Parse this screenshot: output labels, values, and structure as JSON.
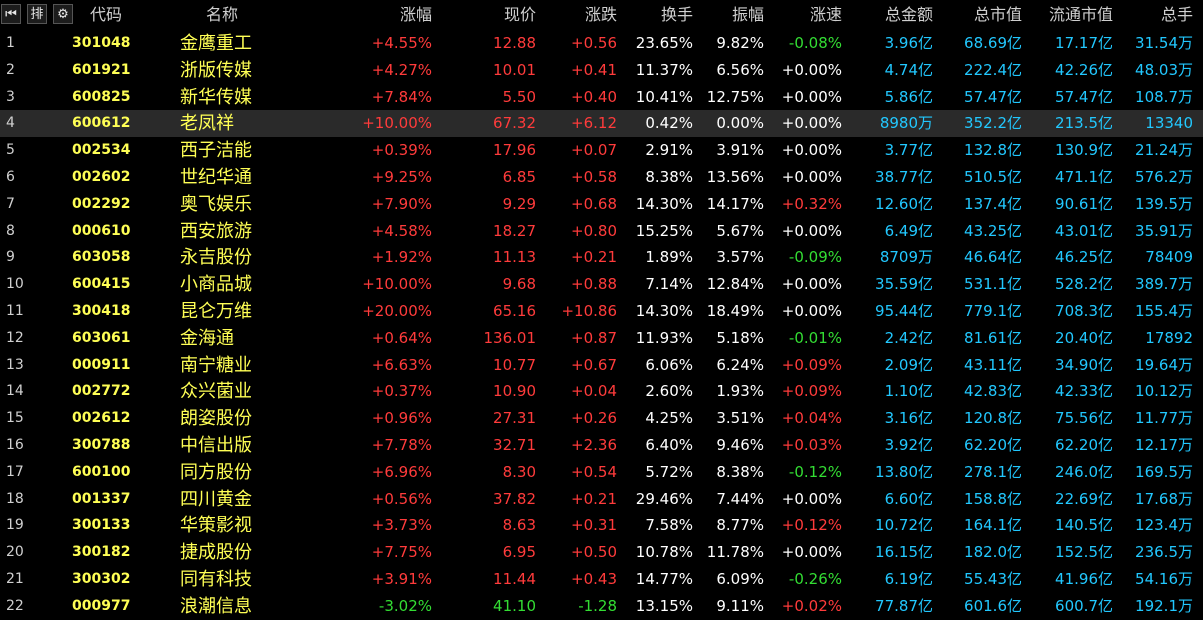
{
  "toolbar": {
    "first_icon": "first-page-icon",
    "sort_icon": "sort-icon",
    "settings_icon": "gear-icon",
    "first_glyph": "⏮",
    "sort_glyph": "排",
    "settings_glyph": "⚙"
  },
  "columns": {
    "code": "代码",
    "name": "名称",
    "pct": "涨幅",
    "price": "现价",
    "chg": "涨跌",
    "turnover": "换手",
    "amplitude": "振幅",
    "speed": "涨速",
    "amount": "总金额",
    "mcap": "总市值",
    "fmcap": "流通市值",
    "total_hand": "总手"
  },
  "rows": [
    {
      "seq": "1",
      "code": "301048",
      "name": "金鹰重工",
      "pct": "+4.55%",
      "price": "12.88",
      "chg": "+0.56",
      "turnover": "23.65%",
      "amplitude": "9.82%",
      "speed": "-0.08%",
      "amount": "3.96亿",
      "mcap": "68.69亿",
      "fmcap": "17.17亿",
      "total_hand": "31.54万"
    },
    {
      "seq": "2",
      "code": "601921",
      "name": "浙版传媒",
      "pct": "+4.27%",
      "price": "10.01",
      "chg": "+0.41",
      "turnover": "11.37%",
      "amplitude": "6.56%",
      "speed": "+0.00%",
      "amount": "4.74亿",
      "mcap": "222.4亿",
      "fmcap": "42.26亿",
      "total_hand": "48.03万"
    },
    {
      "seq": "3",
      "code": "600825",
      "name": "新华传媒",
      "pct": "+7.84%",
      "price": "5.50",
      "chg": "+0.40",
      "turnover": "10.41%",
      "amplitude": "12.75%",
      "speed": "+0.00%",
      "amount": "5.86亿",
      "mcap": "57.47亿",
      "fmcap": "57.47亿",
      "total_hand": "108.7万"
    },
    {
      "seq": "4",
      "code": "600612",
      "name": "老凤祥",
      "pct": "+10.00%",
      "price": "67.32",
      "chg": "+6.12",
      "turnover": "0.42%",
      "amplitude": "0.00%",
      "speed": "+0.00%",
      "amount": "8980万",
      "mcap": "352.2亿",
      "fmcap": "213.5亿",
      "total_hand": "13340"
    },
    {
      "seq": "5",
      "code": "002534",
      "name": "西子洁能",
      "pct": "+0.39%",
      "price": "17.96",
      "chg": "+0.07",
      "turnover": "2.91%",
      "amplitude": "3.91%",
      "speed": "+0.00%",
      "amount": "3.77亿",
      "mcap": "132.8亿",
      "fmcap": "130.9亿",
      "total_hand": "21.24万"
    },
    {
      "seq": "6",
      "code": "002602",
      "name": "世纪华通",
      "pct": "+9.25%",
      "price": "6.85",
      "chg": "+0.58",
      "turnover": "8.38%",
      "amplitude": "13.56%",
      "speed": "+0.00%",
      "amount": "38.77亿",
      "mcap": "510.5亿",
      "fmcap": "471.1亿",
      "total_hand": "576.2万"
    },
    {
      "seq": "7",
      "code": "002292",
      "name": "奥飞娱乐",
      "pct": "+7.90%",
      "price": "9.29",
      "chg": "+0.68",
      "turnover": "14.30%",
      "amplitude": "14.17%",
      "speed": "+0.32%",
      "amount": "12.60亿",
      "mcap": "137.4亿",
      "fmcap": "90.61亿",
      "total_hand": "139.5万"
    },
    {
      "seq": "8",
      "code": "000610",
      "name": "西安旅游",
      "pct": "+4.58%",
      "price": "18.27",
      "chg": "+0.80",
      "turnover": "15.25%",
      "amplitude": "5.67%",
      "speed": "+0.00%",
      "amount": "6.49亿",
      "mcap": "43.25亿",
      "fmcap": "43.01亿",
      "total_hand": "35.91万"
    },
    {
      "seq": "9",
      "code": "603058",
      "name": "永吉股份",
      "pct": "+1.92%",
      "price": "11.13",
      "chg": "+0.21",
      "turnover": "1.89%",
      "amplitude": "3.57%",
      "speed": "-0.09%",
      "amount": "8709万",
      "mcap": "46.64亿",
      "fmcap": "46.25亿",
      "total_hand": "78409"
    },
    {
      "seq": "10",
      "code": "600415",
      "name": "小商品城",
      "pct": "+10.00%",
      "price": "9.68",
      "chg": "+0.88",
      "turnover": "7.14%",
      "amplitude": "12.84%",
      "speed": "+0.00%",
      "amount": "35.59亿",
      "mcap": "531.1亿",
      "fmcap": "528.2亿",
      "total_hand": "389.7万"
    },
    {
      "seq": "11",
      "code": "300418",
      "name": "昆仑万维",
      "pct": "+20.00%",
      "price": "65.16",
      "chg": "+10.86",
      "turnover": "14.30%",
      "amplitude": "18.49%",
      "speed": "+0.00%",
      "amount": "95.44亿",
      "mcap": "779.1亿",
      "fmcap": "708.3亿",
      "total_hand": "155.4万"
    },
    {
      "seq": "12",
      "code": "603061",
      "name": "金海通",
      "pct": "+0.64%",
      "price": "136.01",
      "chg": "+0.87",
      "turnover": "11.93%",
      "amplitude": "5.18%",
      "speed": "-0.01%",
      "amount": "2.42亿",
      "mcap": "81.61亿",
      "fmcap": "20.40亿",
      "total_hand": "17892"
    },
    {
      "seq": "13",
      "code": "000911",
      "name": "南宁糖业",
      "pct": "+6.63%",
      "price": "10.77",
      "chg": "+0.67",
      "turnover": "6.06%",
      "amplitude": "6.24%",
      "speed": "+0.09%",
      "amount": "2.09亿",
      "mcap": "43.11亿",
      "fmcap": "34.90亿",
      "total_hand": "19.64万"
    },
    {
      "seq": "14",
      "code": "002772",
      "name": "众兴菌业",
      "pct": "+0.37%",
      "price": "10.90",
      "chg": "+0.04",
      "turnover": "2.60%",
      "amplitude": "1.93%",
      "speed": "+0.09%",
      "amount": "1.10亿",
      "mcap": "42.83亿",
      "fmcap": "42.33亿",
      "total_hand": "10.12万"
    },
    {
      "seq": "15",
      "code": "002612",
      "name": "朗姿股份",
      "pct": "+0.96%",
      "price": "27.31",
      "chg": "+0.26",
      "turnover": "4.25%",
      "amplitude": "3.51%",
      "speed": "+0.04%",
      "amount": "3.16亿",
      "mcap": "120.8亿",
      "fmcap": "75.56亿",
      "total_hand": "11.77万"
    },
    {
      "seq": "16",
      "code": "300788",
      "name": "中信出版",
      "pct": "+7.78%",
      "price": "32.71",
      "chg": "+2.36",
      "turnover": "6.40%",
      "amplitude": "9.46%",
      "speed": "+0.03%",
      "amount": "3.92亿",
      "mcap": "62.20亿",
      "fmcap": "62.20亿",
      "total_hand": "12.17万"
    },
    {
      "seq": "17",
      "code": "600100",
      "name": "同方股份",
      "pct": "+6.96%",
      "price": "8.30",
      "chg": "+0.54",
      "turnover": "5.72%",
      "amplitude": "8.38%",
      "speed": "-0.12%",
      "amount": "13.80亿",
      "mcap": "278.1亿",
      "fmcap": "246.0亿",
      "total_hand": "169.5万"
    },
    {
      "seq": "18",
      "code": "001337",
      "name": "四川黄金",
      "pct": "+0.56%",
      "price": "37.82",
      "chg": "+0.21",
      "turnover": "29.46%",
      "amplitude": "7.44%",
      "speed": "+0.00%",
      "amount": "6.60亿",
      "mcap": "158.8亿",
      "fmcap": "22.69亿",
      "total_hand": "17.68万"
    },
    {
      "seq": "19",
      "code": "300133",
      "name": "华策影视",
      "pct": "+3.73%",
      "price": "8.63",
      "chg": "+0.31",
      "turnover": "7.58%",
      "amplitude": "8.77%",
      "speed": "+0.12%",
      "amount": "10.72亿",
      "mcap": "164.1亿",
      "fmcap": "140.5亿",
      "total_hand": "123.4万"
    },
    {
      "seq": "20",
      "code": "300182",
      "name": "捷成股份",
      "pct": "+7.75%",
      "price": "6.95",
      "chg": "+0.50",
      "turnover": "10.78%",
      "amplitude": "11.78%",
      "speed": "+0.00%",
      "amount": "16.15亿",
      "mcap": "182.0亿",
      "fmcap": "152.5亿",
      "total_hand": "236.5万"
    },
    {
      "seq": "21",
      "code": "300302",
      "name": "同有科技",
      "pct": "+3.91%",
      "price": "11.44",
      "chg": "+0.43",
      "turnover": "14.77%",
      "amplitude": "6.09%",
      "speed": "-0.26%",
      "amount": "6.19亿",
      "mcap": "55.43亿",
      "fmcap": "41.96亿",
      "total_hand": "54.16万"
    },
    {
      "seq": "22",
      "code": "000977",
      "name": "浪潮信息",
      "pct": "-3.02%",
      "price": "41.10",
      "chg": "-1.28",
      "turnover": "13.15%",
      "amplitude": "9.11%",
      "speed": "+0.02%",
      "amount": "77.87亿",
      "mcap": "601.6亿",
      "fmcap": "600.7亿",
      "total_hand": "192.1万"
    }
  ],
  "selected_row": 3,
  "colors": {
    "up": "#ff3b3b",
    "down": "#33dd33",
    "code": "#ffff55",
    "cap": "#22c8ff",
    "background": "#000000"
  }
}
